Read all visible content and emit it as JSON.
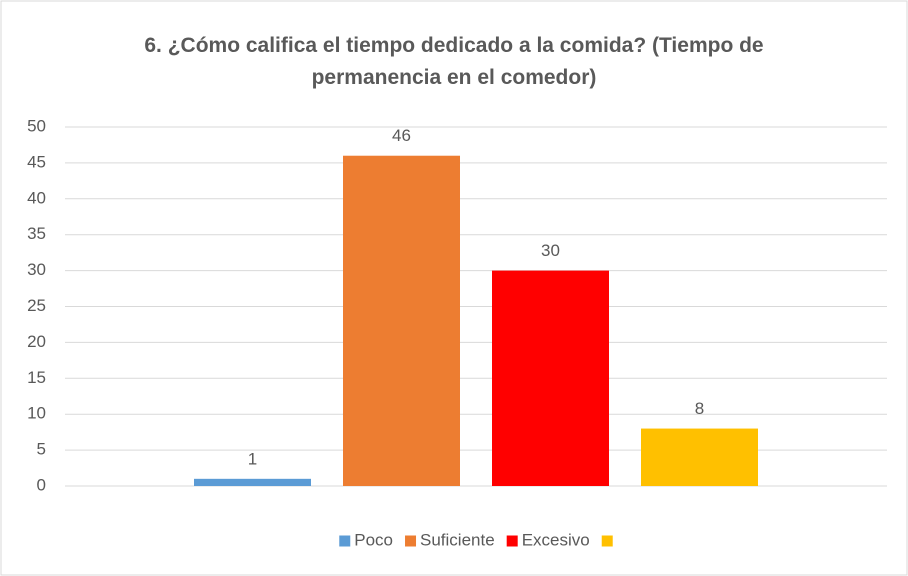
{
  "chart_data": {
    "type": "bar",
    "title": "6. ¿Cómo califica el tiempo dedicado a la comida? (Tiempo de permanencia en el comedor)",
    "categories": [
      null
    ],
    "series": [
      {
        "name": "Poco",
        "color": "#5b9bd5",
        "values": [
          1
        ]
      },
      {
        "name": "Suficiente",
        "color": "#ed7d31",
        "values": [
          46
        ]
      },
      {
        "name": "Excesivo",
        "color": "#ff0000",
        "values": [
          30
        ]
      },
      {
        "color": "#ffc000",
        "values": [
          8
        ]
      }
    ],
    "ylim": [
      0,
      50
    ],
    "yticks": [
      0,
      5,
      10,
      15,
      20,
      25,
      30,
      35,
      40,
      45,
      50
    ],
    "grid": true,
    "legend": "bottom"
  }
}
